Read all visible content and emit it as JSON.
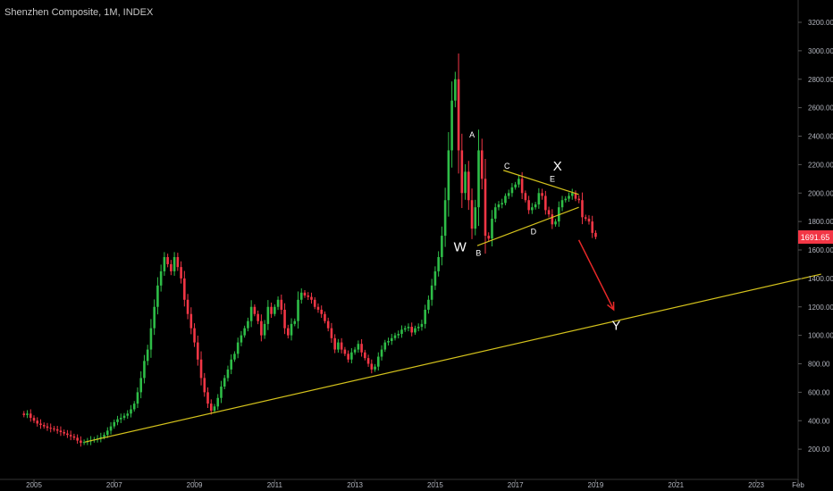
{
  "header": {
    "title": "Shenzhen Composite, 1M, INDEX"
  },
  "price_badge": {
    "label": "1691.65",
    "color": "#f23645"
  },
  "chart_data": {
    "type": "candlestick",
    "title": "Shenzhen Composite, 1M, INDEX",
    "x_axis": {
      "ticks": [
        "2005",
        "2007",
        "2009",
        "2011",
        "2013",
        "2015",
        "2017",
        "2019",
        "2021",
        "2023",
        "Feb"
      ],
      "range": [
        2004.72,
        2024.75
      ]
    },
    "y_axis": {
      "ticks": [
        "200.00",
        "400.00",
        "600.00",
        "800.00",
        "1000.00",
        "1200.00",
        "1400.00",
        "1600.00",
        "1800.00",
        "2000.00",
        "2200.00",
        "2400.00",
        "2600.00",
        "2800.00",
        "3000.00",
        "3200.00"
      ],
      "range": [
        85,
        3310
      ]
    },
    "colors": {
      "up": "#2ebd47",
      "down": "#f23645",
      "trendline": "#d4c21c",
      "arrow": "#e82828",
      "label": "#ffffff"
    },
    "grid": false,
    "candles_close": [
      440,
      450,
      420,
      400,
      380,
      370,
      360,
      350,
      345,
      340,
      330,
      320,
      310,
      300,
      290,
      280,
      260,
      245,
      250,
      255,
      262,
      268,
      275,
      285,
      300,
      330,
      360,
      390,
      410,
      420,
      435,
      450,
      480,
      520,
      600,
      700,
      820,
      900,
      1050,
      1200,
      1350,
      1450,
      1550,
      1500,
      1450,
      1550,
      1480,
      1400,
      1250,
      1150,
      1050,
      950,
      830,
      700,
      600,
      520,
      470,
      500,
      560,
      640,
      700,
      760,
      830,
      870,
      950,
      1000,
      1050,
      1100,
      1200,
      1150,
      1100,
      1000,
      1080,
      1200,
      1150,
      1200,
      1250,
      1180,
      1050,
      1000,
      1080,
      1100,
      1250,
      1300,
      1280,
      1270,
      1250,
      1200,
      1180,
      1150,
      1100,
      1050,
      980,
      900,
      950,
      900,
      870,
      830,
      880,
      900,
      940,
      880,
      840,
      800,
      760,
      780,
      850,
      900,
      950,
      960,
      980,
      1000,
      1010,
      1040,
      1050,
      1060,
      1020,
      1050,
      1060,
      1080,
      1180,
      1250,
      1350,
      1450,
      1550,
      1700,
      1950,
      2300,
      2650,
      2800,
      2300,
      2000,
      2150,
      1950,
      1750,
      1900,
      2300,
      2100,
      1700,
      1680,
      1820,
      1900,
      1920,
      1930,
      1980,
      2000,
      2040,
      2060,
      2100,
      2000,
      1950,
      1880,
      1900,
      1920,
      2000,
      1980,
      1880,
      1850,
      1780,
      1800,
      1900,
      1950,
      1960,
      1980,
      2000,
      1960,
      1950,
      1830,
      1820,
      1800,
      1720,
      1691.65
    ],
    "annotations": [
      {
        "text": "A",
        "date": 2015.92,
        "value": 2390
      },
      {
        "text": "W",
        "date": 2015.62,
        "value": 1590
      },
      {
        "text": "B",
        "date": 2016.08,
        "value": 1560
      },
      {
        "text": "C",
        "date": 2016.79,
        "value": 2170
      },
      {
        "text": "D",
        "date": 2017.45,
        "value": 1710
      },
      {
        "text": "E",
        "date": 2017.92,
        "value": 2080
      },
      {
        "text": "X",
        "date": 2018.05,
        "value": 2160
      },
      {
        "text": "Y",
        "date": 2019.51,
        "value": 1040
      }
    ],
    "trendlines": [
      {
        "from": [
          2006.27,
          250
        ],
        "to": [
          2024.62,
          1430
        ]
      },
      {
        "from": [
          2016.05,
          1630
        ],
        "to": [
          2018.58,
          1900
        ]
      },
      {
        "from": [
          2016.7,
          2160
        ],
        "to": [
          2018.58,
          1990
        ]
      }
    ],
    "arrow": {
      "from": [
        2018.58,
        1670
      ],
      "to": [
        2019.45,
        1180
      ]
    }
  }
}
